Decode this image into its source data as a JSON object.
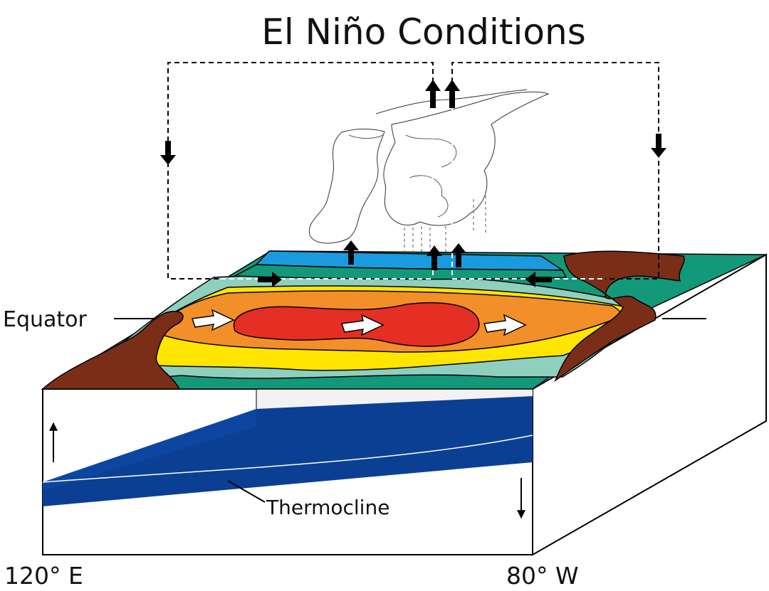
{
  "title": "El Niño Conditions",
  "labels": {
    "equator": "Equator",
    "thermocline": "Thermocline",
    "west_longitude": "120° E",
    "east_longitude": "80° W"
  },
  "colors": {
    "land": "#7a2e17",
    "warmest": "#e52e24",
    "warm": "#f28f28",
    "mild": "#ffe500",
    "cool": "#8fcfbe",
    "cooler": "#13987a",
    "coldest": "#1a9be0",
    "deep_water": "#0b3f94"
  },
  "icons": [
    "arrow-up-icon",
    "arrow-down-icon",
    "arrow-right-icon",
    "arrow-left-icon",
    "cloud-icon"
  ]
}
